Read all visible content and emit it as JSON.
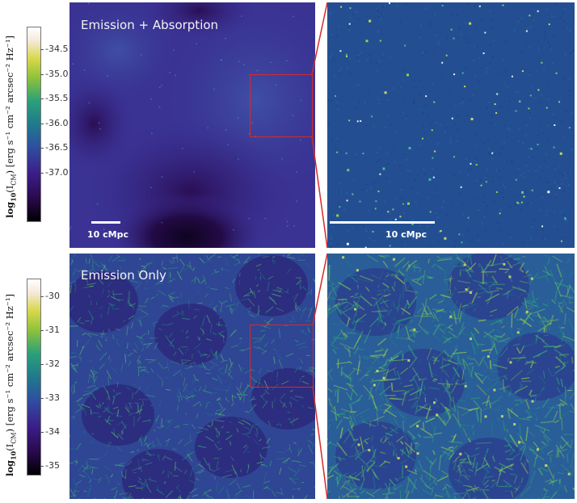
{
  "top_row": {
    "title": "Emission + Absorption",
    "colorbar": {
      "label_bold": "log",
      "label_sub": "10",
      "label_rest": "(I",
      "label_cm": "CM",
      "label_units": ") [erg s⁻¹ cm⁻² arcsec⁻² Hz⁻¹]",
      "ticks": [
        "-34.5",
        "-35.0",
        "-35.5",
        "-36.0",
        "-36.5",
        "-37.0"
      ]
    },
    "scalebar_left": "10 cMpc",
    "scalebar_right": "10 cMpc"
  },
  "bottom_row": {
    "title": "Emission Only",
    "colorbar": {
      "label_bold": "log",
      "label_sub": "10",
      "label_rest": "(I",
      "label_cm": "CM",
      "label_units": ") [erg s⁻¹ cm⁻² arcsec⁻² Hz⁻¹]",
      "ticks": [
        "-30",
        "-31",
        "-32",
        "-33",
        "-34",
        "-35"
      ]
    }
  },
  "colors": {
    "zoom_box": "#d62a2a",
    "colormap": [
      "#000000",
      "#2a0a4e",
      "#3b1f8a",
      "#2f4ea0",
      "#1f7a8c",
      "#2aa07a",
      "#8ec23a",
      "#d8d84a",
      "#ffffff"
    ]
  }
}
